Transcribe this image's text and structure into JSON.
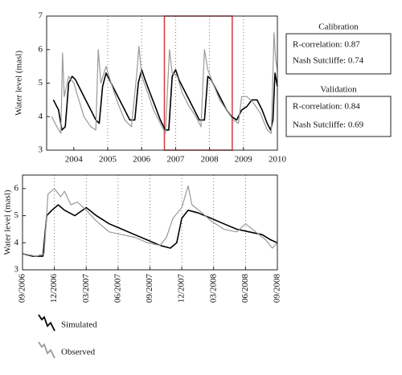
{
  "chart_data": [
    {
      "type": "line",
      "y_label": "Water level (masl)",
      "xlim": [
        2003.2,
        2010
      ],
      "xticks": [
        2004,
        2005,
        2006,
        2007,
        2008,
        2009,
        2010
      ],
      "ylim": [
        3,
        7
      ],
      "yticks": [
        3,
        4,
        5,
        6,
        7
      ],
      "grid": "x",
      "highlight_range": [
        2006.67,
        2008.67
      ],
      "highlight_color": "#d9363e",
      "series": [
        {
          "name": "Simulated",
          "color": "#000000",
          "x": [
            2003.4,
            2003.55,
            2003.65,
            2003.75,
            2003.85,
            2003.95,
            2004.05,
            2004.2,
            2004.35,
            2004.5,
            2004.65,
            2004.75,
            2004.85,
            2004.95,
            2005.05,
            2005.2,
            2005.35,
            2005.5,
            2005.65,
            2005.8,
            2005.9,
            2006.0,
            2006.1,
            2006.25,
            2006.4,
            2006.55,
            2006.7,
            2006.8,
            2006.9,
            2007.0,
            2007.1,
            2007.25,
            2007.4,
            2007.55,
            2007.7,
            2007.85,
            2007.95,
            2008.05,
            2008.2,
            2008.35,
            2008.5,
            2008.65,
            2008.8,
            2008.95,
            2009.1,
            2009.25,
            2009.4,
            2009.55,
            2009.7,
            2009.8,
            2009.87,
            2009.93,
            2010.0
          ],
          "values": [
            4.5,
            4.2,
            3.6,
            3.7,
            5.0,
            5.2,
            5.1,
            4.8,
            4.5,
            4.2,
            3.9,
            3.8,
            4.9,
            5.3,
            5.1,
            4.8,
            4.5,
            4.2,
            3.9,
            3.9,
            5.0,
            5.4,
            5.1,
            4.7,
            4.3,
            3.9,
            3.6,
            3.6,
            5.2,
            5.4,
            5.1,
            4.8,
            4.5,
            4.2,
            3.9,
            3.9,
            5.2,
            5.1,
            4.8,
            4.5,
            4.2,
            4.0,
            3.9,
            4.2,
            4.3,
            4.5,
            4.5,
            4.2,
            3.8,
            3.6,
            3.9,
            5.3,
            4.9
          ]
        },
        {
          "name": "Observed",
          "color": "#999999",
          "x": [
            2003.35,
            2003.5,
            2003.62,
            2003.67,
            2003.72,
            2003.85,
            2004.0,
            2004.15,
            2004.3,
            2004.5,
            2004.65,
            2004.72,
            2004.8,
            2004.95,
            2005.1,
            2005.3,
            2005.5,
            2005.7,
            2005.85,
            2005.92,
            2006.0,
            2006.15,
            2006.35,
            2006.55,
            2006.7,
            2006.82,
            2006.9,
            2007.05,
            2007.2,
            2007.4,
            2007.6,
            2007.75,
            2007.85,
            2007.95,
            2008.1,
            2008.3,
            2008.5,
            2008.7,
            2008.85,
            2008.95,
            2009.1,
            2009.3,
            2009.5,
            2009.7,
            2009.82,
            2009.9,
            2009.95,
            2010.0
          ],
          "values": [
            4.0,
            3.7,
            3.5,
            5.9,
            4.6,
            5.2,
            5.0,
            4.5,
            4.0,
            3.7,
            3.6,
            6.0,
            5.0,
            5.5,
            5.0,
            4.4,
            3.9,
            3.7,
            5.2,
            6.1,
            5.2,
            4.8,
            4.2,
            3.8,
            3.5,
            6.0,
            5.3,
            5.2,
            4.7,
            4.3,
            4.0,
            3.7,
            6.0,
            5.4,
            5.0,
            4.5,
            4.2,
            3.9,
            3.8,
            4.6,
            4.6,
            4.4,
            4.1,
            3.6,
            3.5,
            6.5,
            5.7,
            5.4
          ]
        }
      ]
    },
    {
      "type": "line",
      "y_label": "Water level (masl)",
      "xlim": [
        2006.67,
        2008.67
      ],
      "xticks": [
        {
          "value": 2006.67,
          "label": "09/2006"
        },
        {
          "value": 2006.92,
          "label": "12/2006"
        },
        {
          "value": 2007.17,
          "label": "03/2007"
        },
        {
          "value": 2007.42,
          "label": "06/2007"
        },
        {
          "value": 2007.67,
          "label": "09/2007"
        },
        {
          "value": 2007.92,
          "label": "12/2007"
        },
        {
          "value": 2008.17,
          "label": "03/2008"
        },
        {
          "value": 2008.42,
          "label": "06/2008"
        },
        {
          "value": 2008.67,
          "label": "09/2008"
        }
      ],
      "ylim": [
        3,
        6.5
      ],
      "yticks": [
        3,
        4,
        5,
        6
      ],
      "grid": "x",
      "frame_color": "#d9363e",
      "series": [
        {
          "name": "Simulated",
          "color": "#000000",
          "x": [
            2006.67,
            2006.75,
            2006.83,
            2006.86,
            2006.9,
            2006.95,
            2007.0,
            2007.08,
            2007.17,
            2007.25,
            2007.35,
            2007.45,
            2007.55,
            2007.65,
            2007.75,
            2007.83,
            2007.88,
            2007.92,
            2007.97,
            2008.05,
            2008.15,
            2008.25,
            2008.35,
            2008.45,
            2008.55,
            2008.62,
            2008.67
          ],
          "values": [
            3.6,
            3.5,
            3.5,
            5.0,
            5.2,
            5.4,
            5.2,
            5.0,
            5.3,
            5.0,
            4.7,
            4.5,
            4.3,
            4.1,
            3.9,
            3.8,
            4.0,
            4.9,
            5.2,
            5.1,
            4.9,
            4.7,
            4.5,
            4.4,
            4.3,
            4.1,
            4.0
          ]
        },
        {
          "name": "Observed",
          "color": "#999999",
          "x": [
            2006.67,
            2006.78,
            2006.84,
            2006.87,
            2006.92,
            2006.97,
            2007.0,
            2007.05,
            2007.1,
            2007.17,
            2007.25,
            2007.35,
            2007.45,
            2007.55,
            2007.65,
            2007.75,
            2007.8,
            2007.85,
            2007.92,
            2007.97,
            2008.0,
            2008.08,
            2008.15,
            2008.25,
            2008.35,
            2008.42,
            2008.5,
            2008.58,
            2008.63,
            2008.67
          ],
          "values": [
            3.6,
            3.5,
            3.6,
            5.8,
            6.0,
            5.7,
            5.9,
            5.4,
            5.5,
            5.2,
            4.8,
            4.4,
            4.3,
            4.2,
            4.0,
            3.9,
            4.2,
            4.9,
            5.3,
            6.1,
            5.4,
            5.1,
            4.8,
            4.5,
            4.4,
            4.7,
            4.4,
            4.1,
            3.8,
            4.0
          ]
        }
      ]
    }
  ],
  "stats_boxes": [
    {
      "title": "Calibration",
      "lines": [
        "R-correlation: 0.87",
        "Nash Sutcliffe: 0.74"
      ]
    },
    {
      "title": "Validation",
      "lines": [
        "R-correlation: 0.84",
        "Nash Sutcliffe: 0.69"
      ]
    }
  ]
}
